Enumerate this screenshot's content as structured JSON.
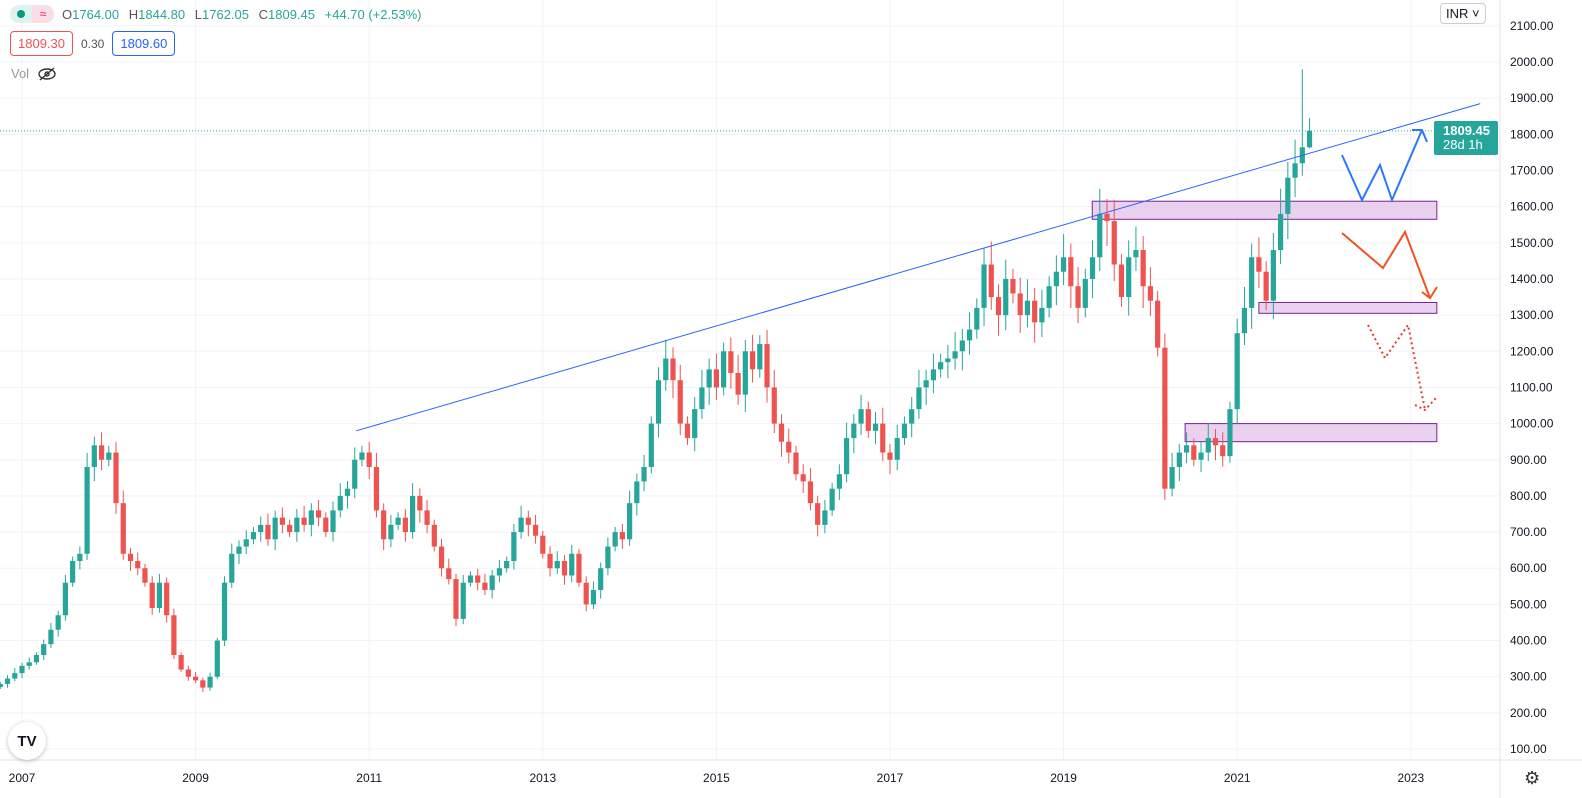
{
  "legend": {
    "open_label": "O",
    "open": "1764.00",
    "high_label": "H",
    "high": "1844.80",
    "low_label": "L",
    "low": "1762.05",
    "close_label": "C",
    "close": "1809.45",
    "change": "+44.70 (+2.53%)",
    "bid": "1809.30",
    "spread": "0.30",
    "ask": "1809.60",
    "vol_label": "Vol"
  },
  "currency": "INR",
  "last_price": {
    "price": "1809.45",
    "countdown": "28d 1h"
  },
  "colors": {
    "up": "#26a69a",
    "down": "#ef5350",
    "trendline": "#2962ff",
    "zone": "#e1bee7"
  },
  "chart_data": {
    "type": "candlestick",
    "interval": "monthly",
    "start": "2006-10",
    "closes": [
      280,
      295,
      310,
      330,
      340,
      360,
      390,
      430,
      470,
      560,
      620,
      640,
      880,
      940,
      900,
      920,
      780,
      640,
      620,
      600,
      560,
      490,
      560,
      470,
      360,
      320,
      300,
      290,
      270,
      300,
      400,
      560,
      640,
      660,
      680,
      700,
      720,
      680,
      740,
      720,
      700,
      740,
      720,
      760,
      740,
      700,
      760,
      800,
      820,
      900,
      920,
      880,
      760,
      680,
      720,
      740,
      700,
      800,
      760,
      720,
      660,
      600,
      570,
      460,
      560,
      580,
      560,
      540,
      580,
      600,
      620,
      700,
      740,
      720,
      690,
      640,
      600,
      620,
      580,
      640,
      560,
      500,
      540,
      600,
      660,
      700,
      680,
      780,
      840,
      880,
      1000,
      1120,
      1180,
      1120,
      1000,
      960,
      1040,
      1100,
      1150,
      1100,
      1200,
      1140,
      1080,
      1200,
      1150,
      1220,
      1100,
      1000,
      950,
      920,
      860,
      840,
      780,
      720,
      760,
      820,
      860,
      960,
      1000,
      1040,
      980,
      1000,
      920,
      900,
      960,
      1000,
      1040,
      1100,
      1120,
      1150,
      1170,
      1180,
      1200,
      1230,
      1260,
      1320,
      1440,
      1350,
      1300,
      1400,
      1360,
      1300,
      1340,
      1280,
      1320,
      1380,
      1420,
      1460,
      1380,
      1320,
      1400,
      1460,
      1580,
      1560,
      1440,
      1350,
      1460,
      1480,
      1380,
      1340,
      1210,
      820,
      880,
      920,
      940,
      900,
      920,
      960,
      940,
      910,
      1040,
      1250,
      1320,
      1460,
      1420,
      1340,
      1480,
      1580,
      1680,
      1720,
      1764,
      1809.45
    ],
    "last_candle": {
      "open": 1764.0,
      "high": 1844.8,
      "low": 1762.05,
      "close": 1809.45
    },
    "ylim": [
      60,
      2130
    ],
    "y_ticks": [
      "100.00",
      "200.00",
      "300.00",
      "400.00",
      "500.00",
      "600.00",
      "700.00",
      "800.00",
      "900.00",
      "1000.00",
      "1100.00",
      "1200.00",
      "1300.00",
      "1400.00",
      "1500.00",
      "1600.00",
      "1700.00",
      "1800.00",
      "1900.00",
      "2000.00",
      "2100.00"
    ],
    "x_ticks": [
      "2007",
      "2009",
      "2011",
      "2013",
      "2015",
      "2017",
      "2019",
      "2021",
      "2023"
    ],
    "annotations": {
      "trendline": [
        [
          2010.85,
          980
        ],
        [
          2023.8,
          1885
        ]
      ],
      "zones": [
        {
          "from": 2019.33,
          "to": 2023.3,
          "low": 1565,
          "high": 1615
        },
        {
          "from": 2021.25,
          "to": 2023.3,
          "low": 1305,
          "high": 1335
        },
        {
          "from": 2020.4,
          "to": 2023.3,
          "low": 950,
          "high": 1000
        }
      ],
      "price_line": 1809.45
    }
  }
}
